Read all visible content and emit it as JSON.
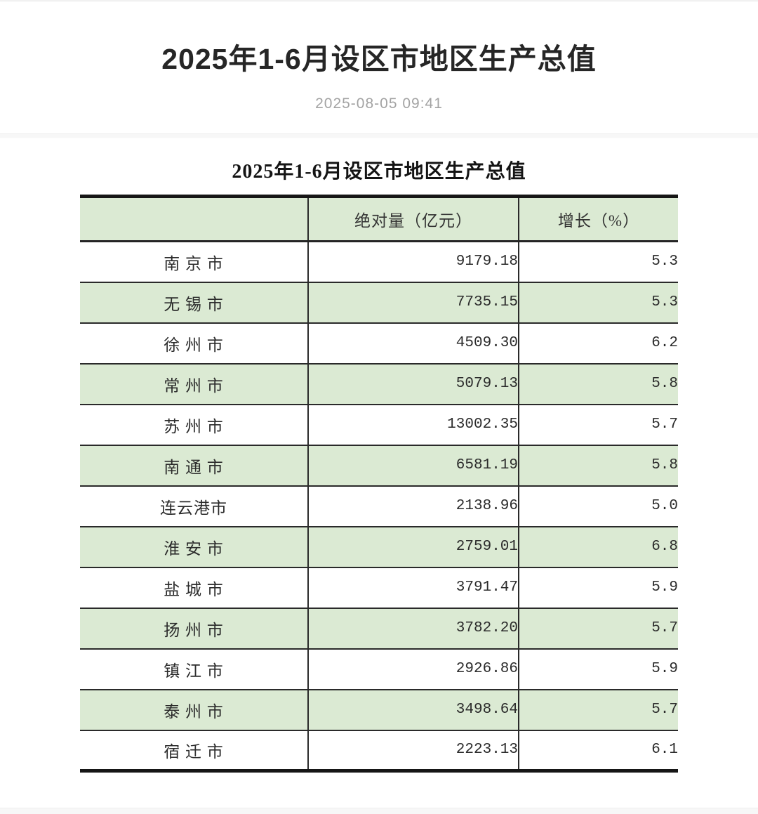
{
  "header": {
    "title": "2025年1-6月设区市地区生产总值",
    "date": "2025-08-05 09:41"
  },
  "table": {
    "title": "2025年1-6月设区市地区生产总值",
    "columns": {
      "region": "",
      "absolute": "绝对量（亿元）",
      "growth": "增长（%）"
    },
    "rows": [
      {
        "city": "南 京 市",
        "value": "9179.18",
        "growth": "5.3"
      },
      {
        "city": "无 锡 市",
        "value": "7735.15",
        "growth": "5.3"
      },
      {
        "city": "徐 州 市",
        "value": "4509.30",
        "growth": "6.2"
      },
      {
        "city": "常 州 市",
        "value": "5079.13",
        "growth": "5.8"
      },
      {
        "city": "苏 州 市",
        "value": "13002.35",
        "growth": "5.7"
      },
      {
        "city": "南 通 市",
        "value": "6581.19",
        "growth": "5.8"
      },
      {
        "city": "连云港市",
        "value": "2138.96",
        "growth": "5.0"
      },
      {
        "city": "淮 安 市",
        "value": "2759.01",
        "growth": "6.8"
      },
      {
        "city": "盐 城 市",
        "value": "3791.47",
        "growth": "5.9"
      },
      {
        "city": "扬 州 市",
        "value": "3782.20",
        "growth": "5.7"
      },
      {
        "city": "镇 江 市",
        "value": "2926.86",
        "growth": "5.9"
      },
      {
        "city": "泰 州 市",
        "value": "3498.64",
        "growth": "5.7"
      },
      {
        "city": "宿 迁 市",
        "value": "2223.13",
        "growth": "6.1"
      }
    ]
  },
  "colors": {
    "row_green": "#dbead3",
    "border_dark": "#161616",
    "date_gray": "#a3a3a3"
  }
}
